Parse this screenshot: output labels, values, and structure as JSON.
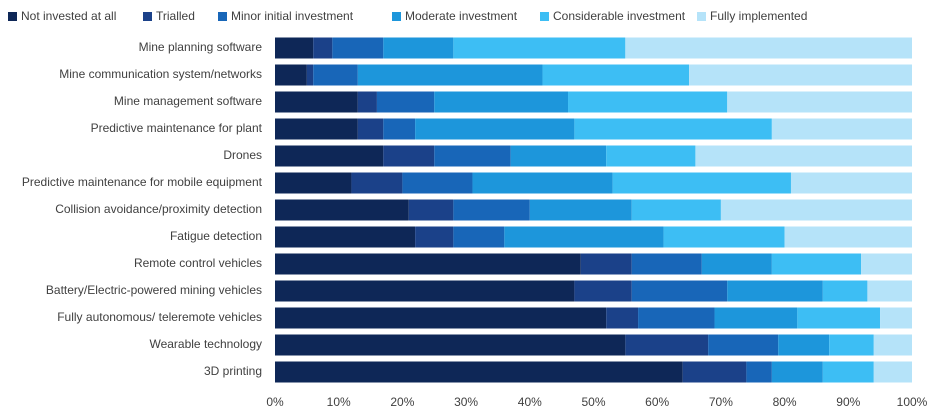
{
  "chart_data": {
    "type": "stacked_barh",
    "categories": [
      "Mine planning software",
      "Mine communication system/networks",
      "Mine management software",
      "Predictive maintenance for plant",
      "Drones",
      "Predictive maintenance for mobile equipment",
      "Collision avoidance/proximity detection",
      "Fatigue detection",
      "Remote control vehicles",
      "Battery/Electric-powered mining vehicles",
      "Fully autonomous/ teleremote vehicles",
      "Wearable technology",
      "3D printing"
    ],
    "series": [
      {
        "name": "Not invested at all",
        "color": "#0e2757",
        "values": [
          6,
          5,
          13,
          13,
          17,
          12,
          21,
          22,
          48,
          47,
          52,
          55,
          64
        ]
      },
      {
        "name": "Trialled",
        "color": "#1b4189",
        "values": [
          3,
          1,
          3,
          4,
          8,
          8,
          7,
          6,
          8,
          9,
          5,
          13,
          10
        ]
      },
      {
        "name": "Minor initial investment",
        "color": "#1866b8",
        "values": [
          8,
          7,
          9,
          5,
          12,
          11,
          12,
          8,
          11,
          15,
          12,
          11,
          4
        ]
      },
      {
        "name": "Moderate investment",
        "color": "#1d96db",
        "values": [
          11,
          29,
          21,
          25,
          15,
          22,
          16,
          25,
          11,
          15,
          13,
          8,
          8
        ]
      },
      {
        "name": "Considerable investment",
        "color": "#3dbef4",
        "values": [
          27,
          23,
          25,
          31,
          14,
          28,
          14,
          19,
          14,
          7,
          13,
          7,
          8
        ]
      },
      {
        "name": "Fully implemented",
        "color": "#b5e3f9",
        "values": [
          45,
          35,
          29,
          22,
          34,
          19,
          30,
          20,
          8,
          7,
          5,
          6,
          6
        ]
      }
    ],
    "xlim": [
      0,
      100
    ],
    "xticks": [
      {
        "value": 0,
        "label": "0%"
      },
      {
        "value": 10,
        "label": "10%"
      },
      {
        "value": 20,
        "label": "20%"
      },
      {
        "value": 30,
        "label": "30%"
      },
      {
        "value": 40,
        "label": "40%"
      },
      {
        "value": 50,
        "label": "50%"
      },
      {
        "value": 60,
        "label": "60%"
      },
      {
        "value": 70,
        "label": "70%"
      },
      {
        "value": 80,
        "label": "80%"
      },
      {
        "value": 90,
        "label": "90%"
      },
      {
        "value": 100,
        "label": "100%"
      }
    ],
    "legend": "top"
  }
}
